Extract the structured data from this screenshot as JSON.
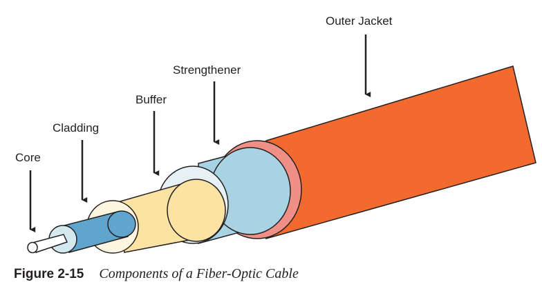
{
  "labels": {
    "core": "Core",
    "cladding": "Cladding",
    "buffer": "Buffer",
    "strengthener": "Strengthener",
    "outer_jacket": "Outer Jacket"
  },
  "caption": {
    "figure_number": "Figure 2-15",
    "title": "Components of a Fiber-Optic Cable"
  },
  "colors": {
    "outer_jacket": "#f26a2e",
    "outer_jacket_rim": "#ef8f86",
    "strengthener": "#a9d2e3",
    "strengthener_rim": "#e6f1f6",
    "buffer": "#fbe3a4",
    "buffer_rim": "#fdf5df",
    "cladding": "#5fa5cc",
    "cladding_rim": "#d4e8f0",
    "core": "#ffffff",
    "outline": "#231f20"
  }
}
